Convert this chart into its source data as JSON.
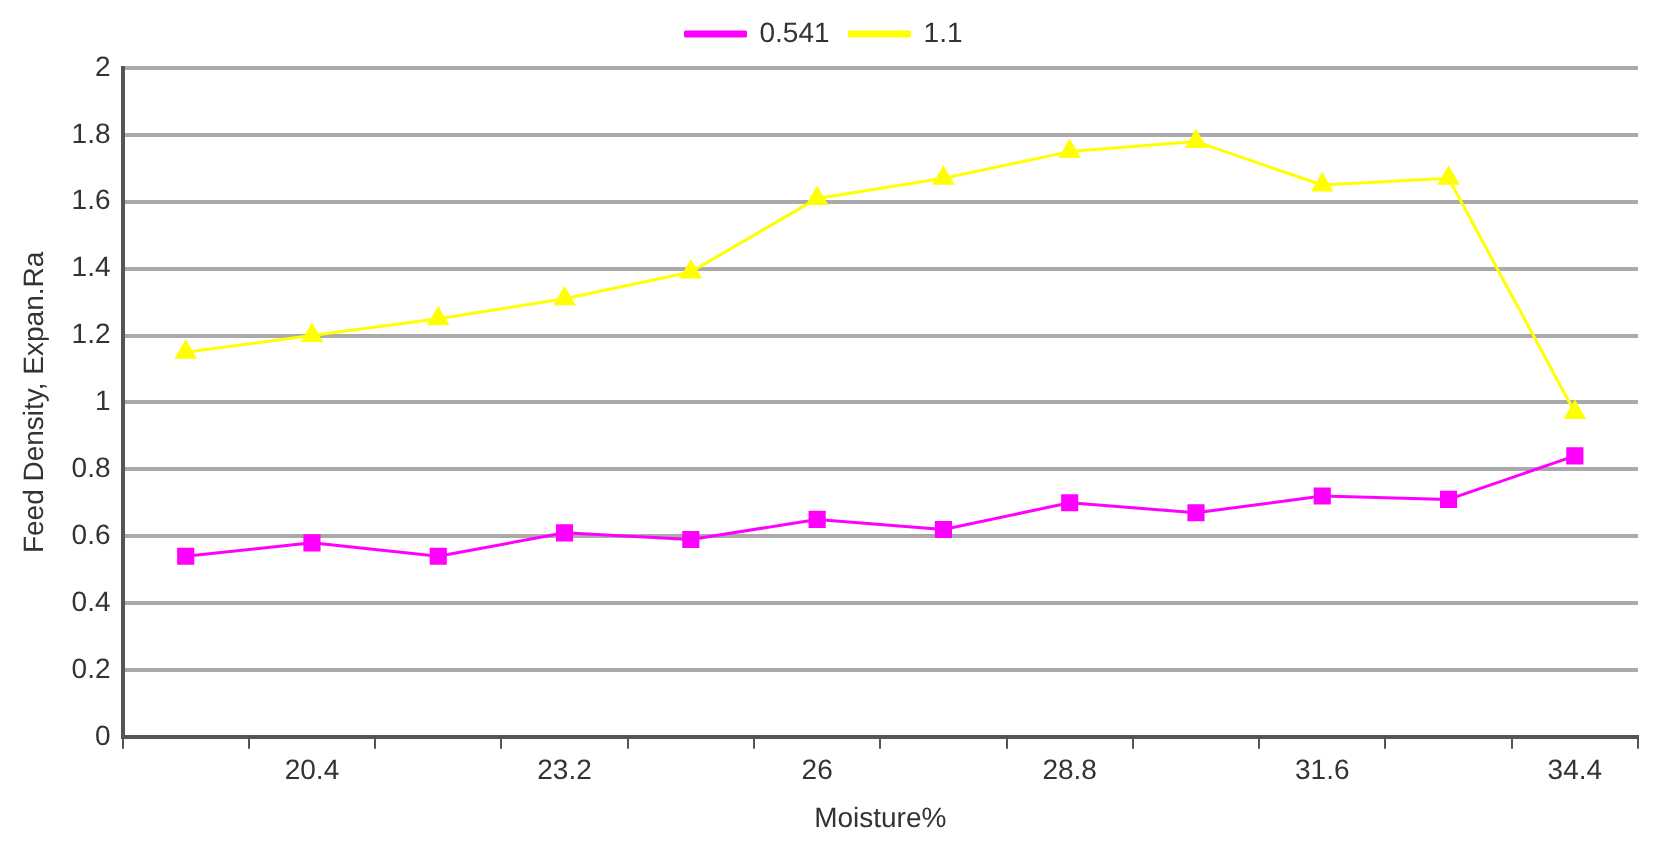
{
  "chart_data": {
    "type": "line",
    "xlabel": "Moisture%",
    "ylabel": "Feed Density, Expan.Ra",
    "categories": [
      null,
      "20.4",
      null,
      "23.2",
      null,
      "26",
      null,
      "28.8",
      null,
      "31.6",
      null,
      "34.4"
    ],
    "series": [
      {
        "name": "0.541",
        "color": "#ff00ff",
        "marker": "square",
        "values": [
          0.54,
          0.58,
          0.54,
          0.61,
          0.59,
          0.65,
          0.62,
          0.7,
          0.67,
          0.72,
          0.71,
          0.84
        ]
      },
      {
        "name": "1.1",
        "color": "#ffff00",
        "marker": "triangle",
        "values": [
          1.15,
          1.2,
          1.25,
          1.31,
          1.39,
          1.61,
          1.67,
          1.75,
          1.78,
          1.65,
          1.67,
          0.97
        ]
      }
    ],
    "ylim": [
      0,
      2
    ],
    "yticks": [
      0,
      0.2,
      0.4,
      0.6,
      0.8,
      1,
      1.2,
      1.4,
      1.6,
      1.8,
      2
    ],
    "grid": "y",
    "legend": "top",
    "line_style": "solid"
  }
}
